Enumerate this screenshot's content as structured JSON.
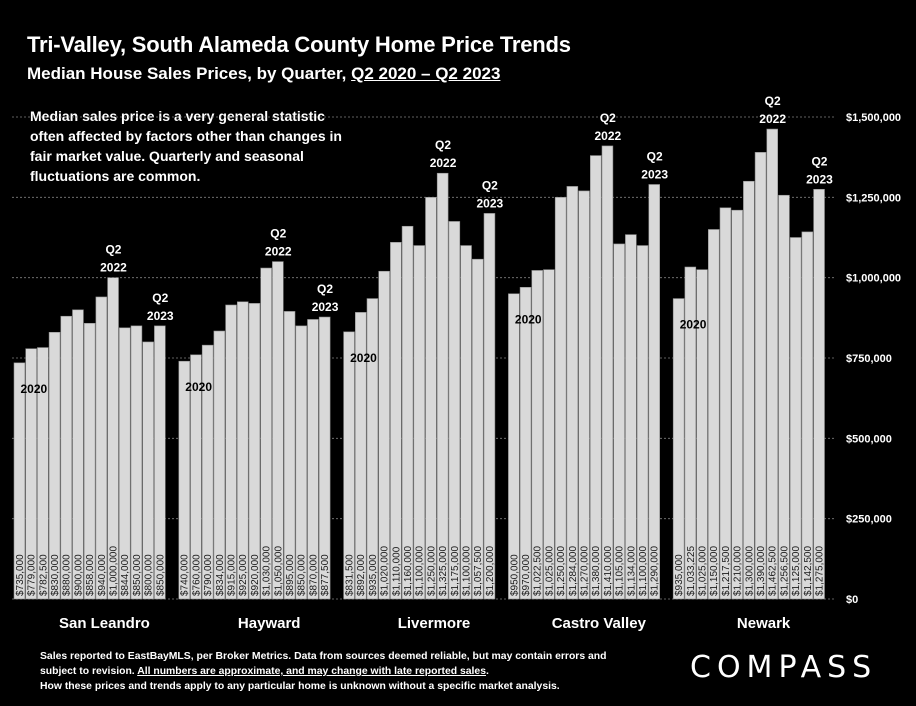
{
  "header": {
    "title": "Tri-Valley, South Alameda County Home Price Trends",
    "subtitle_prefix": "Median House Sales Prices, by Quarter, ",
    "subtitle_period": "Q2 2020 – Q2 2023"
  },
  "note": "Median sales price is a very general statistic often affected by factors other than changes in fair market value. Quarterly and seasonal fluctuations are common.",
  "footer": {
    "line1": "Sales reported to EastBayMLS, per Broker Metrics. Data from sources deemed reliable, but may contain errors and subject to revision. ",
    "line1_underlined": "All numbers are approximate, and may change with late reported sales",
    "line1_end": ".",
    "line2": "How these prices and trends apply to any particular home is unknown without a specific market analysis."
  },
  "logo": "COMPASS",
  "colors": {
    "background": "#000000",
    "bar": "#d9d9d9",
    "bar_stroke": "#8c8c8c",
    "text": "#ffffff",
    "grid": "#7f7f7f"
  },
  "chart_data": {
    "type": "bar",
    "ylim": [
      0,
      1500000
    ],
    "yticks": [
      0,
      250000,
      500000,
      750000,
      1000000,
      1250000,
      1500000
    ],
    "ytick_labels": [
      "$0",
      "$250,000",
      "$500,000",
      "$750,000",
      "$1,000,000",
      "$1,250,000",
      "$1,500,000"
    ],
    "y_axis_position": "right",
    "grid": true,
    "groups": [
      {
        "name": "San Leandro",
        "values": [
          735000,
          779000,
          782500,
          830000,
          880000,
          900000,
          858000,
          940000,
          1000000,
          844000,
          850000,
          800000,
          850000
        ],
        "labels": [
          "$735,000",
          "$779,000",
          "$782,500",
          "$830,000",
          "$880,000",
          "$900,000",
          "$858,000",
          "$940,000",
          "$1,000,000",
          "$844,000",
          "$850,000",
          "$800,000",
          "$850,000"
        ],
        "annotations": [
          {
            "index": 0,
            "text": "2020"
          },
          {
            "index": 8,
            "text": "Q2 2022"
          },
          {
            "index": 12,
            "text": "Q2 2023"
          }
        ]
      },
      {
        "name": "Hayward",
        "values": [
          740000,
          760000,
          790000,
          834000,
          915000,
          925000,
          920000,
          1030000,
          1050000,
          895000,
          850000,
          870000,
          877500
        ],
        "labels": [
          "$740,000",
          "$760,000",
          "$790,000",
          "$834,000",
          "$915,000",
          "$925,000",
          "$920,000",
          "$1,030,000",
          "$1,050,000",
          "$895,000",
          "$850,000",
          "$870,000",
          "$877,500"
        ],
        "annotations": [
          {
            "index": 0,
            "text": "2020"
          },
          {
            "index": 8,
            "text": "Q2 2022"
          },
          {
            "index": 12,
            "text": "Q2 2023"
          }
        ]
      },
      {
        "name": "Livermore",
        "values": [
          831500,
          892000,
          935000,
          1020000,
          1110000,
          1160000,
          1100000,
          1250000,
          1325000,
          1175000,
          1100000,
          1057500,
          1200000
        ],
        "labels": [
          "$831,500",
          "$892,000",
          "$935,000",
          "$1,020,000",
          "$1,110,000",
          "$1,160,000",
          "$1,100,000",
          "$1,250,000",
          "$1,325,000",
          "$1,175,000",
          "$1,100,000",
          "$1,057,500",
          "$1,200,000"
        ],
        "annotations": [
          {
            "index": 0,
            "text": "2020"
          },
          {
            "index": 8,
            "text": "Q2 2022"
          },
          {
            "index": 12,
            "text": "Q2 2023"
          }
        ]
      },
      {
        "name": "Castro Valley",
        "values": [
          950000,
          970000,
          1022500,
          1025000,
          1250000,
          1284000,
          1270000,
          1380000,
          1410000,
          1105000,
          1134000,
          1100000,
          1290000
        ],
        "labels": [
          "$950,000",
          "$970,000",
          "$1,022,500",
          "$1,025,000",
          "$1,250,000",
          "$1,284,000",
          "$1,270,000",
          "$1,380,000",
          "$1,410,000",
          "$1,105,000",
          "$1,134,000",
          "$1,100,000",
          "$1,290,000"
        ],
        "annotations": [
          {
            "index": 0,
            "text": "2020"
          },
          {
            "index": 8,
            "text": "Q2 2022"
          },
          {
            "index": 12,
            "text": "Q2 2023"
          }
        ]
      },
      {
        "name": "Newark",
        "values": [
          935000,
          1033225,
          1025000,
          1150000,
          1217500,
          1210000,
          1300000,
          1390000,
          1462500,
          1256500,
          1125000,
          1142500,
          1275000
        ],
        "labels": [
          "$935,000",
          "$1,033,225",
          "$1,025,000",
          "$1,150,000",
          "$1,217,500",
          "$1,210,000",
          "$1,300,000",
          "$1,390,000",
          "$1,462,500",
          "$1,256,500",
          "$1,125,000",
          "$1,142,500",
          "$1,275,000"
        ],
        "annotations": [
          {
            "index": 0,
            "text": "2020"
          },
          {
            "index": 8,
            "text": "Q2 2022"
          },
          {
            "index": 12,
            "text": "Q2 2023"
          }
        ]
      }
    ]
  }
}
